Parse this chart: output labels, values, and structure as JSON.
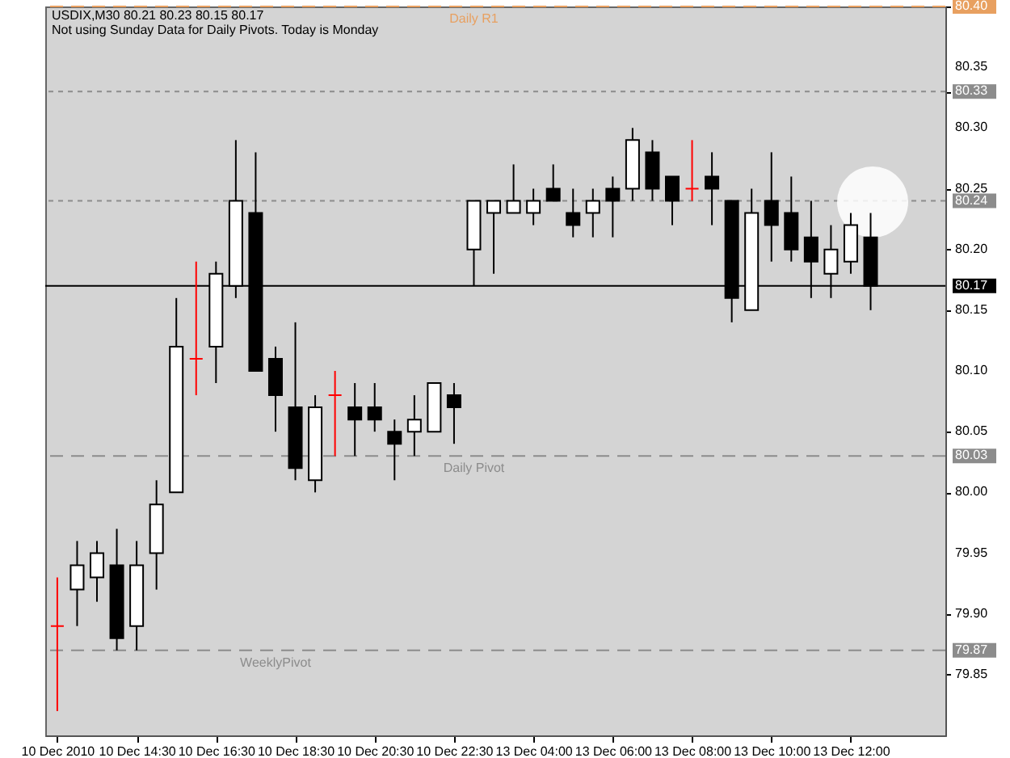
{
  "chart_data": {
    "type": "candlestick",
    "title": "USDIX,M30  80.21 80.23 80.15 80.17",
    "subtitle": "Not using Sunday Data for Daily Pivots.  Today is Monday",
    "categories": [
      "10 Dec 2010",
      null,
      null,
      null,
      "10 Dec 14:30",
      null,
      null,
      null,
      "10 Dec 16:30",
      null,
      null,
      null,
      "10 Dec 18:30",
      null,
      null,
      null,
      "10 Dec 20:30",
      null,
      null,
      null,
      "10 Dec 22:30",
      null,
      null,
      null,
      "13 Dec 04:00",
      null,
      null,
      null,
      "13 Dec 06:00",
      null,
      null,
      null,
      "13 Dec 08:00",
      null,
      null,
      null,
      "13 Dec 10:00",
      null,
      null,
      null,
      "13 Dec 12:00",
      null
    ],
    "ohlc": [
      [
        79.89,
        79.93,
        79.82,
        79.89
      ],
      [
        79.92,
        79.96,
        79.89,
        79.94
      ],
      [
        79.93,
        79.96,
        79.91,
        79.95
      ],
      [
        79.94,
        79.97,
        79.87,
        79.88
      ],
      [
        79.89,
        79.96,
        79.87,
        79.94
      ],
      [
        79.95,
        80.01,
        79.92,
        79.99
      ],
      [
        80.0,
        80.16,
        80.0,
        80.12
      ],
      [
        80.11,
        80.19,
        80.08,
        80.11
      ],
      [
        80.12,
        80.19,
        80.09,
        80.18
      ],
      [
        80.17,
        80.29,
        80.16,
        80.24
      ],
      [
        80.23,
        80.28,
        80.1,
        80.1
      ],
      [
        80.11,
        80.12,
        80.05,
        80.08
      ],
      [
        80.07,
        80.14,
        80.01,
        80.02
      ],
      [
        80.01,
        80.08,
        80.0,
        80.07
      ],
      [
        80.08,
        80.1,
        80.03,
        80.08
      ],
      [
        80.07,
        80.09,
        80.03,
        80.06
      ],
      [
        80.07,
        80.09,
        80.05,
        80.06
      ],
      [
        80.05,
        80.06,
        80.01,
        80.04
      ],
      [
        80.05,
        80.08,
        80.03,
        80.06
      ],
      [
        80.05,
        80.09,
        80.05,
        80.09
      ],
      [
        80.08,
        80.09,
        80.04,
        80.07
      ],
      [
        80.2,
        80.24,
        80.17,
        80.24
      ],
      [
        80.23,
        80.24,
        80.18,
        80.24
      ],
      [
        80.23,
        80.27,
        80.23,
        80.24
      ],
      [
        80.23,
        80.25,
        80.22,
        80.24
      ],
      [
        80.25,
        80.27,
        80.24,
        80.24
      ],
      [
        80.23,
        80.25,
        80.21,
        80.22
      ],
      [
        80.23,
        80.25,
        80.21,
        80.24
      ],
      [
        80.25,
        80.26,
        80.21,
        80.24
      ],
      [
        80.25,
        80.3,
        80.24,
        80.29
      ],
      [
        80.28,
        80.29,
        80.24,
        80.25
      ],
      [
        80.26,
        80.26,
        80.22,
        80.24
      ],
      [
        80.25,
        80.29,
        80.24,
        80.25
      ],
      [
        80.26,
        80.28,
        80.22,
        80.25
      ],
      [
        80.24,
        80.24,
        80.14,
        80.16
      ],
      [
        80.15,
        80.25,
        80.15,
        80.23
      ],
      [
        80.24,
        80.28,
        80.19,
        80.22
      ],
      [
        80.23,
        80.26,
        80.19,
        80.2
      ],
      [
        80.21,
        80.24,
        80.16,
        80.19
      ],
      [
        80.18,
        80.22,
        80.16,
        80.2
      ],
      [
        80.19,
        80.23,
        80.18,
        80.22
      ],
      [
        80.21,
        80.23,
        80.15,
        80.17
      ]
    ],
    "colors": [
      "#ff0000",
      "#ffffff",
      "#ffffff",
      "#000000",
      "#ffffff",
      "#ffffff",
      "#ffffff",
      "#ff0000",
      "#ffffff",
      "#ffffff",
      "#000000",
      "#000000",
      "#000000",
      "#ffffff",
      "#ff0000",
      "#000000",
      "#000000",
      "#000000",
      "#ffffff",
      "#ffffff",
      "#000000",
      "#ffffff",
      "#ffffff",
      "#ffffff",
      "#ffffff",
      "#000000",
      "#000000",
      "#ffffff",
      "#000000",
      "#ffffff",
      "#000000",
      "#000000",
      "#ff0000",
      "#000000",
      "#000000",
      "#ffffff",
      "#000000",
      "#000000",
      "#000000",
      "#ffffff",
      "#ffffff",
      "#000000"
    ],
    "ylim": [
      79.8,
      80.4
    ],
    "yticks": [
      79.85,
      {
        "value": 79.87,
        "label": "79.87"
      },
      {
        "value": 79.9,
        "label": "79.90"
      },
      79.95,
      {
        "value": 80,
        "label": "80.00"
      },
      {
        "value": 80.03,
        "label": "80.03"
      },
      80.05,
      {
        "value": 80.1,
        "label": "80.10"
      },
      80.15,
      {
        "value": 80.17,
        "label": "80.17"
      },
      {
        "value": 80.2,
        "label": "80.20"
      },
      {
        "value": 80.24,
        "label": "80.24"
      },
      80.25,
      {
        "value": 80.3,
        "label": "80.30"
      },
      {
        "value": 80.33,
        "label": "80.33"
      },
      80.35,
      {
        "value": 80.4,
        "label": "80.40"
      }
    ],
    "ref_lines": [
      {
        "axis": "y",
        "value": 80.4,
        "label": "Daily R1",
        "color": "#e8a060",
        "line_style": "dashed"
      },
      {
        "axis": "y",
        "value": 80.33,
        "color": "#8c8c8c",
        "line_style": "dotted"
      },
      {
        "axis": "y",
        "value": 80.24,
        "color": "#8c8c8c",
        "line_style": "dotted"
      },
      {
        "axis": "y",
        "value": 80.17,
        "color": "#000000",
        "line_style": "solid"
      },
      {
        "axis": "y",
        "value": 80.03,
        "label": "Daily Pivot",
        "color": "#8c8c8c",
        "line_style": "dashed"
      },
      {
        "axis": "y",
        "value": 79.87,
        "label": "WeeklyPivot",
        "color": "#8c8c8c",
        "line_style": "dashed"
      }
    ],
    "grid": false
  }
}
